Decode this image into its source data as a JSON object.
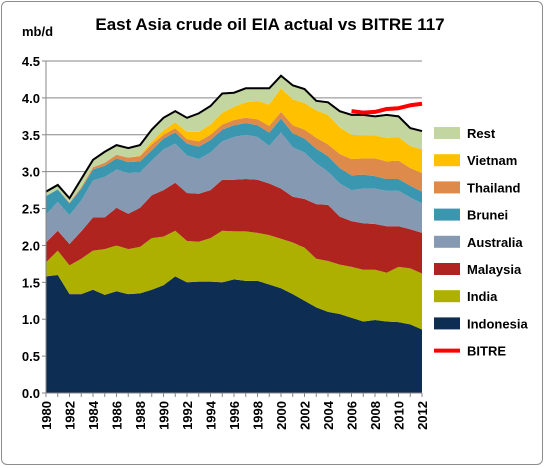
{
  "chart_data": {
    "type": "area",
    "title": "East Asia crude oil EIA actual vs BITRE 117",
    "ylabel_unit": "mb/d",
    "xlabel": "",
    "ylim": [
      0.0,
      4.5
    ],
    "xlim": [
      1980,
      2012
    ],
    "y_ticks": [
      "0.0",
      "0.5",
      "1.0",
      "1.5",
      "2.0",
      "2.5",
      "3.0",
      "3.5",
      "4.0",
      "4.5"
    ],
    "x_ticks": [
      "1980",
      "1982",
      "1984",
      "1986",
      "1988",
      "1990",
      "1992",
      "1994",
      "1996",
      "1998",
      "2000",
      "2002",
      "2004",
      "2006",
      "2008",
      "2010",
      "2012"
    ],
    "grid": "horizontal",
    "legend_position": "right",
    "x": [
      1980,
      1981,
      1982,
      1983,
      1984,
      1985,
      1986,
      1987,
      1988,
      1989,
      1990,
      1991,
      1992,
      1993,
      1994,
      1995,
      1996,
      1997,
      1998,
      1999,
      2000,
      2001,
      2002,
      2003,
      2004,
      2005,
      2006,
      2007,
      2008,
      2009,
      2010,
      2011,
      2012
    ],
    "series": [
      {
        "name": "Indonesia",
        "color": "#0d2d52",
        "values": [
          1.58,
          1.6,
          1.34,
          1.34,
          1.4,
          1.33,
          1.38,
          1.34,
          1.35,
          1.4,
          1.46,
          1.58,
          1.5,
          1.51,
          1.51,
          1.5,
          1.54,
          1.52,
          1.52,
          1.47,
          1.42,
          1.34,
          1.25,
          1.16,
          1.1,
          1.07,
          1.02,
          0.97,
          0.99,
          0.97,
          0.96,
          0.93,
          0.86
        ]
      },
      {
        "name": "India",
        "color": "#aeb000",
        "values": [
          0.19,
          0.33,
          0.39,
          0.48,
          0.53,
          0.62,
          0.62,
          0.61,
          0.63,
          0.7,
          0.66,
          0.62,
          0.56,
          0.54,
          0.59,
          0.7,
          0.65,
          0.67,
          0.65,
          0.67,
          0.67,
          0.7,
          0.72,
          0.66,
          0.69,
          0.67,
          0.69,
          0.7,
          0.68,
          0.66,
          0.75,
          0.76,
          0.76
        ]
      },
      {
        "name": "Malaysia",
        "color": "#b02420",
        "values": [
          0.27,
          0.27,
          0.29,
          0.37,
          0.45,
          0.43,
          0.51,
          0.48,
          0.53,
          0.58,
          0.63,
          0.65,
          0.65,
          0.65,
          0.65,
          0.69,
          0.7,
          0.71,
          0.72,
          0.7,
          0.68,
          0.62,
          0.66,
          0.74,
          0.76,
          0.65,
          0.62,
          0.63,
          0.62,
          0.63,
          0.55,
          0.53,
          0.55
        ]
      },
      {
        "name": "Australia",
        "color": "#8599b3",
        "values": [
          0.38,
          0.39,
          0.39,
          0.42,
          0.5,
          0.55,
          0.52,
          0.55,
          0.48,
          0.47,
          0.55,
          0.53,
          0.51,
          0.47,
          0.51,
          0.52,
          0.58,
          0.6,
          0.58,
          0.51,
          0.76,
          0.67,
          0.63,
          0.55,
          0.45,
          0.45,
          0.42,
          0.47,
          0.48,
          0.48,
          0.48,
          0.43,
          0.4
        ]
      },
      {
        "name": "Brunei",
        "color": "#3b97b0",
        "values": [
          0.25,
          0.17,
          0.16,
          0.16,
          0.15,
          0.15,
          0.15,
          0.15,
          0.15,
          0.14,
          0.15,
          0.15,
          0.16,
          0.17,
          0.17,
          0.16,
          0.16,
          0.16,
          0.16,
          0.18,
          0.19,
          0.19,
          0.19,
          0.2,
          0.21,
          0.21,
          0.2,
          0.19,
          0.17,
          0.16,
          0.16,
          0.16,
          0.16
        ]
      },
      {
        "name": "Thailand",
        "color": "#de8a4a",
        "values": [
          0.0,
          0.0,
          0.01,
          0.02,
          0.03,
          0.04,
          0.05,
          0.06,
          0.07,
          0.08,
          0.05,
          0.06,
          0.06,
          0.07,
          0.07,
          0.07,
          0.07,
          0.07,
          0.08,
          0.09,
          0.09,
          0.11,
          0.12,
          0.15,
          0.16,
          0.19,
          0.22,
          0.22,
          0.24,
          0.24,
          0.25,
          0.24,
          0.25
        ]
      },
      {
        "name": "Vietnam",
        "color": "#ffc000",
        "values": [
          0.0,
          0.0,
          0.0,
          0.0,
          0.0,
          0.0,
          0.0,
          0.0,
          0.01,
          0.04,
          0.06,
          0.08,
          0.1,
          0.13,
          0.14,
          0.16,
          0.18,
          0.21,
          0.25,
          0.29,
          0.32,
          0.35,
          0.36,
          0.37,
          0.4,
          0.36,
          0.33,
          0.31,
          0.31,
          0.32,
          0.32,
          0.3,
          0.32
        ]
      },
      {
        "name": "Rest",
        "color": "#c4d6a0",
        "values": [
          0.06,
          0.06,
          0.06,
          0.11,
          0.1,
          0.15,
          0.13,
          0.13,
          0.14,
          0.16,
          0.17,
          0.15,
          0.19,
          0.25,
          0.25,
          0.26,
          0.19,
          0.19,
          0.17,
          0.22,
          0.17,
          0.19,
          0.19,
          0.13,
          0.17,
          0.22,
          0.27,
          0.28,
          0.26,
          0.31,
          0.28,
          0.24,
          0.25
        ]
      }
    ],
    "total_outline_color": "#000000",
    "bitre": {
      "name": "BITRE",
      "color": "#ff0000",
      "x": [
        2006,
        2007,
        2008,
        2009,
        2010,
        2011,
        2012
      ],
      "values": [
        3.82,
        3.8,
        3.81,
        3.85,
        3.86,
        3.9,
        3.92
      ]
    }
  }
}
